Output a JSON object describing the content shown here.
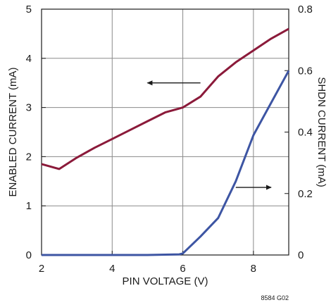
{
  "chart_data": {
    "type": "line",
    "xlabel": "PIN VOLTAGE (V)",
    "ylabel_left": "ENABLED CURRENT (mA)",
    "ylabel_right": "SHDN CURRENT (mA)",
    "xlim": [
      2,
      9
    ],
    "ylim_left": [
      0,
      5
    ],
    "ylim_right": [
      0,
      0.8
    ],
    "x_ticks": [
      2,
      4,
      6,
      8
    ],
    "y_ticks_left": [
      0,
      1,
      2,
      3,
      4,
      5
    ],
    "y_ticks_right": [
      0,
      0.2,
      0.4,
      0.6,
      0.8
    ],
    "x_tick_labels": [
      "2",
      "4",
      "6",
      "8"
    ],
    "y_tick_labels_left": [
      "0",
      "1",
      "2",
      "3",
      "4",
      "5"
    ],
    "y_tick_labels_right": [
      "0",
      "0.2",
      "0.4",
      "0.6",
      "0.8"
    ],
    "grid": true,
    "series": [
      {
        "axis": "left",
        "color": "#8b1a3a",
        "x": [
          2.0,
          2.5,
          3.0,
          3.5,
          4.0,
          4.5,
          5.0,
          5.5,
          6.0,
          6.5,
          7.0,
          7.5,
          8.0,
          8.5,
          9.0
        ],
        "y": [
          1.85,
          1.75,
          1.98,
          2.18,
          2.36,
          2.54,
          2.72,
          2.9,
          3.0,
          3.22,
          3.63,
          3.92,
          4.16,
          4.4,
          4.6
        ]
      },
      {
        "axis": "right",
        "color": "#3d55a3",
        "x": [
          2.0,
          3.0,
          4.0,
          5.0,
          5.9,
          6.0,
          6.5,
          7.0,
          7.5,
          8.0,
          8.5,
          9.0
        ],
        "y": [
          0.0,
          0.0,
          0.0,
          0.0,
          0.002,
          0.005,
          0.06,
          0.12,
          0.24,
          0.39,
          0.495,
          0.6
        ]
      }
    ],
    "annotations": [
      {
        "type": "arrow",
        "direction": "left",
        "x_from": 6.5,
        "x_to": 5.0,
        "y": 3.5,
        "axis": "left"
      },
      {
        "type": "arrow",
        "direction": "right",
        "x_from": 7.5,
        "x_to": 8.5,
        "y": 0.22,
        "axis": "right"
      }
    ],
    "figure_note": "8584 G02"
  }
}
